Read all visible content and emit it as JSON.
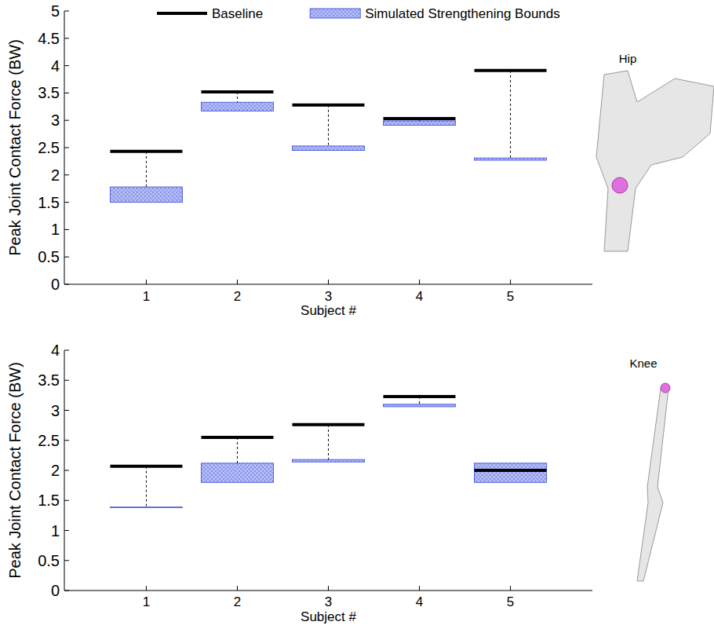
{
  "chart_data": [
    {
      "type": "range",
      "title": "Hip",
      "x_label": "Subject #",
      "y_label": "Peak Joint Contact Force (BW)",
      "categories": [
        "1",
        "2",
        "3",
        "4",
        "5"
      ],
      "ylim": [
        0,
        5
      ],
      "yticks": [
        0,
        0.5,
        1,
        1.5,
        2,
        2.5,
        3,
        3.5,
        4,
        4.5,
        5
      ],
      "legend": "top",
      "series": [
        {
          "name": "Baseline",
          "type": "line",
          "color": "#000000",
          "values": [
            2.43,
            3.52,
            3.28,
            3.03,
            3.91
          ]
        },
        {
          "name": "Simulated Strengthening Bounds",
          "type": "box",
          "color": "#5060e0",
          "low": [
            1.5,
            3.17,
            2.45,
            2.91,
            2.27
          ],
          "high": [
            1.78,
            3.33,
            2.53,
            2.99,
            2.31
          ]
        }
      ]
    },
    {
      "type": "range",
      "title": "Knee",
      "x_label": "Subject #",
      "y_label": "Peak Joint Contact Force (BW)",
      "categories": [
        "1",
        "2",
        "3",
        "4",
        "5"
      ],
      "ylim": [
        0,
        4
      ],
      "yticks": [
        0,
        0.5,
        1,
        1.5,
        2,
        2.5,
        3,
        3.5,
        4
      ],
      "series": [
        {
          "type": "line",
          "color": "#000000",
          "values": [
            2.07,
            2.55,
            2.76,
            3.23,
            2.0
          ]
        },
        {
          "type": "box",
          "color": "#5060e0",
          "low": [
            1.38,
            1.8,
            2.14,
            3.06,
            1.8
          ],
          "high": [
            1.39,
            2.12,
            2.18,
            3.1,
            2.12
          ]
        }
      ]
    }
  ]
}
